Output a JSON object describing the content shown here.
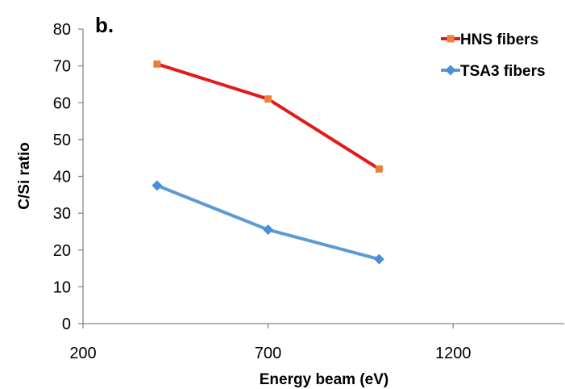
{
  "chart_data": {
    "type": "line",
    "panel_label": "b.",
    "xlabel": "Energy beam (eV)",
    "ylabel": "C/Si ratio",
    "xlim": [
      200,
      1500
    ],
    "ylim": [
      0,
      80
    ],
    "xticks": [
      200,
      700,
      1200
    ],
    "yticks": [
      0,
      10,
      20,
      30,
      40,
      50,
      60,
      70,
      80
    ],
    "grid": false,
    "legend_position": "top-right",
    "series": [
      {
        "name": "HNS fibers",
        "color": "#e31a1c",
        "marker": "square",
        "marker_color": "#e8803a",
        "x": [
          400,
          700,
          1000
        ],
        "values": [
          70.5,
          61,
          42
        ]
      },
      {
        "name": "TSA3 fibers",
        "color": "#5b9bd5",
        "marker": "diamond",
        "marker_color": "#4a8fd8",
        "x": [
          400,
          700,
          1000
        ],
        "values": [
          37.5,
          25.5,
          17.5
        ]
      }
    ]
  }
}
